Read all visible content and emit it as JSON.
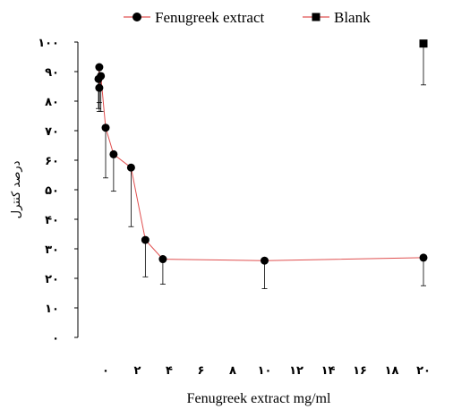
{
  "chart_data": {
    "type": "scatter",
    "xlabel": "Fenugreek extract mg/ml",
    "ylabel": "درصد کنترل",
    "xlim": [
      -2,
      21
    ],
    "ylim": [
      0,
      100
    ],
    "x_ticks": [
      {
        "value": 0,
        "label": "۰"
      },
      {
        "value": 2,
        "label": "۲"
      },
      {
        "value": 4,
        "label": "۴"
      },
      {
        "value": 6,
        "label": "۶"
      },
      {
        "value": 8,
        "label": "۸"
      },
      {
        "value": 10,
        "label": "۱۰"
      },
      {
        "value": 12,
        "label": "۱۲"
      },
      {
        "value": 14,
        "label": "۱۴"
      },
      {
        "value": 16,
        "label": "۱۶"
      },
      {
        "value": 18,
        "label": "۱۸"
      },
      {
        "value": 20,
        "label": "۲۰"
      }
    ],
    "y_ticks": [
      {
        "value": 0,
        "label": "۰"
      },
      {
        "value": 10,
        "label": "۱۰"
      },
      {
        "value": 20,
        "label": "۲۰"
      },
      {
        "value": 30,
        "label": "۳۰"
      },
      {
        "value": 40,
        "label": "۴۰"
      },
      {
        "value": 50,
        "label": "۵۰"
      },
      {
        "value": 60,
        "label": "۶۰"
      },
      {
        "value": 70,
        "label": "۷۰"
      },
      {
        "value": 80,
        "label": "۸۰"
      },
      {
        "value": 90,
        "label": "۹۰"
      },
      {
        "value": 100,
        "label": "۱۰۰"
      }
    ],
    "grid": false,
    "legend_position": "top",
    "series": [
      {
        "name": "Fenugreek extract",
        "marker": "circle",
        "color": "#000000",
        "line_color": "#e05050",
        "points": [
          {
            "x": -0.4,
            "y": 91.5,
            "err": 12
          },
          {
            "x": -0.45,
            "y": 87.5,
            "err": 10
          },
          {
            "x": -0.3,
            "y": 88.5,
            "err": 12
          },
          {
            "x": -0.4,
            "y": 84.5,
            "err": 8
          },
          {
            "x": 0,
            "y": 71,
            "err": 17
          },
          {
            "x": 0.5,
            "y": 62,
            "err": 12.5
          },
          {
            "x": 1.6,
            "y": 57.5,
            "err": 20
          },
          {
            "x": 2.5,
            "y": 33,
            "err": 12.5
          },
          {
            "x": 3.6,
            "y": 26.5,
            "err": 8.5
          },
          {
            "x": 10,
            "y": 26,
            "err": 9.5
          },
          {
            "x": 20,
            "y": 27,
            "err": 9.5
          }
        ]
      },
      {
        "name": "Blank",
        "marker": "square",
        "color": "#000000",
        "line_color": "#e05050",
        "points": [
          {
            "x": 20,
            "y": 99.5,
            "err": 14
          }
        ]
      }
    ]
  }
}
